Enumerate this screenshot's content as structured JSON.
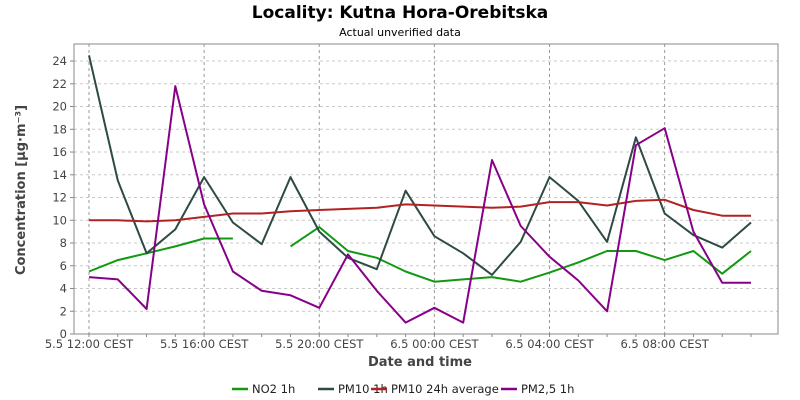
{
  "chart_data": {
    "type": "line",
    "title": "Locality: Kutna Hora-Orebitska",
    "subtitle": "Actual unverified data",
    "xlabel": "Date and time",
    "ylabel": "Concentration [µg·m⁻³]",
    "ylim": [
      0,
      25.5
    ],
    "y_ticks": [
      0,
      2,
      4,
      6,
      8,
      10,
      12,
      14,
      16,
      18,
      20,
      22,
      24
    ],
    "x_points": 24,
    "x_ticks": [
      {
        "index": 0,
        "label": "5.5 12:00 CEST"
      },
      {
        "index": 4,
        "label": "5.5 16:00 CEST"
      },
      {
        "index": 8,
        "label": "5.5 20:00 CEST"
      },
      {
        "index": 12,
        "label": "6.5 00:00 CEST"
      },
      {
        "index": 16,
        "label": "6.5 04:00 CEST"
      },
      {
        "index": 20,
        "label": "6.5 08:00 CEST"
      }
    ],
    "grid": true,
    "legend_position": "bottom",
    "series": [
      {
        "name": "NO2 1h",
        "color": "#119911",
        "values": [
          5.5,
          6.5,
          7.1,
          7.7,
          8.4,
          8.4,
          null,
          7.7,
          9.4,
          7.3,
          6.7,
          5.5,
          4.6,
          4.8,
          5.0,
          4.6,
          5.4,
          6.3,
          7.3,
          7.3,
          6.5,
          7.3,
          5.3,
          7.3
        ]
      },
      {
        "name": "PM10 1h",
        "color": "#2e4a44",
        "values": [
          24.5,
          13.5,
          7.1,
          9.2,
          13.8,
          9.8,
          7.9,
          13.8,
          9.0,
          6.7,
          5.7,
          12.6,
          8.6,
          7.1,
          5.2,
          8.1,
          13.8,
          11.7,
          8.1,
          17.3,
          10.6,
          8.7,
          7.6,
          9.8
        ]
      },
      {
        "name": "PM10 24h average",
        "color": "#b22222",
        "values": [
          10.0,
          10.0,
          9.9,
          10.0,
          10.3,
          10.6,
          10.6,
          10.8,
          10.9,
          11.0,
          11.1,
          11.4,
          11.3,
          11.2,
          11.1,
          11.2,
          11.6,
          11.6,
          11.3,
          11.7,
          11.8,
          10.9,
          10.4,
          10.4
        ]
      },
      {
        "name": "PM2,5 1h",
        "color": "#880088",
        "values": [
          5.0,
          4.8,
          2.2,
          21.8,
          11.4,
          5.5,
          3.8,
          3.4,
          2.3,
          7.0,
          3.8,
          1.0,
          2.3,
          1.0,
          15.3,
          9.5,
          6.8,
          4.7,
          2.0,
          16.6,
          18.1,
          9.0,
          4.5,
          4.5
        ]
      }
    ]
  }
}
